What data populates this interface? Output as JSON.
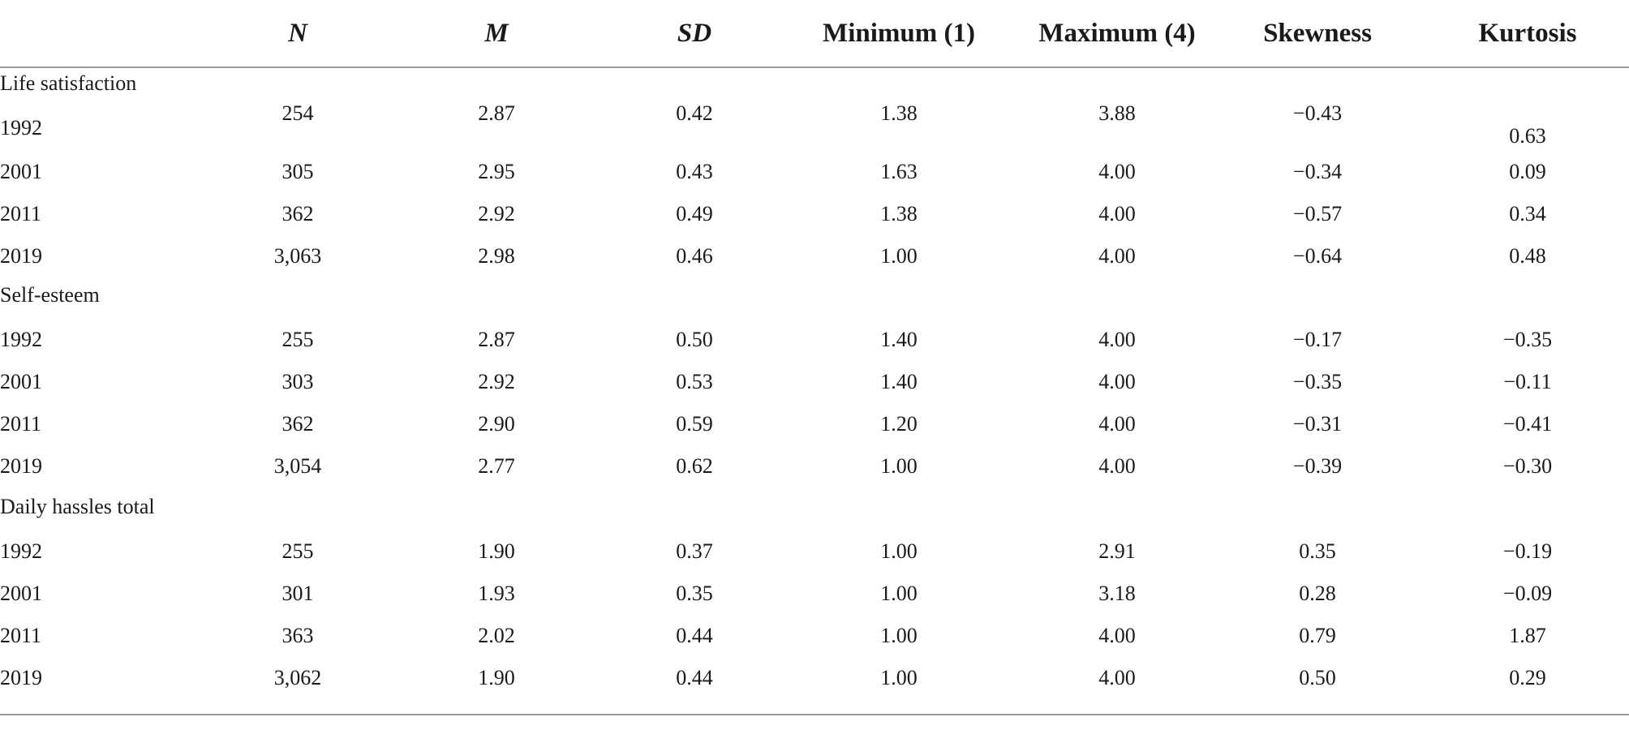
{
  "headers": [
    "N",
    "M",
    "SD",
    "Minimum (1)",
    "Maximum (4)",
    "Skewness",
    "Kurtosis"
  ],
  "sections": [
    {
      "label": "Life satisfaction",
      "rows": [
        {
          "year": "1992",
          "values": [
            "254",
            "2.87",
            "0.42",
            "1.38",
            "3.88",
            "−0.43",
            "0.63"
          ]
        },
        {
          "year": "2001",
          "values": [
            "305",
            "2.95",
            "0.43",
            "1.63",
            "4.00",
            "−0.34",
            "0.09"
          ]
        },
        {
          "year": "2011",
          "values": [
            "362",
            "2.92",
            "0.49",
            "1.38",
            "4.00",
            "−0.57",
            "0.34"
          ]
        },
        {
          "year": "2019",
          "values": [
            "3,063",
            "2.98",
            "0.46",
            "1.00",
            "4.00",
            "−0.64",
            "0.48"
          ]
        }
      ]
    },
    {
      "label": "Self-esteem",
      "rows": [
        {
          "year": "1992",
          "values": [
            "255",
            "2.87",
            "0.50",
            "1.40",
            "4.00",
            "−0.17",
            "−0.35"
          ]
        },
        {
          "year": "2001",
          "values": [
            "303",
            "2.92",
            "0.53",
            "1.40",
            "4.00",
            "−0.35",
            "−0.11"
          ]
        },
        {
          "year": "2011",
          "values": [
            "362",
            "2.90",
            "0.59",
            "1.20",
            "4.00",
            "−0.31",
            "−0.41"
          ]
        },
        {
          "year": "2019",
          "values": [
            "3,054",
            "2.77",
            "0.62",
            "1.00",
            "4.00",
            "−0.39",
            "−0.30"
          ]
        }
      ]
    },
    {
      "label": "Daily hassles total",
      "rows": [
        {
          "year": "1992",
          "values": [
            "255",
            "1.90",
            "0.37",
            "1.00",
            "2.91",
            "0.35",
            "−0.19"
          ]
        },
        {
          "year": "2001",
          "values": [
            "301",
            "1.93",
            "0.35",
            "1.00",
            "3.18",
            "0.28",
            "−0.09"
          ]
        },
        {
          "year": "2011",
          "values": [
            "363",
            "2.02",
            "0.44",
            "1.00",
            "4.00",
            "0.79",
            "1.87"
          ]
        },
        {
          "year": "2019",
          "values": [
            "3,062",
            "1.90",
            "0.44",
            "1.00",
            "4.00",
            "0.50",
            "0.29"
          ]
        }
      ]
    }
  ]
}
